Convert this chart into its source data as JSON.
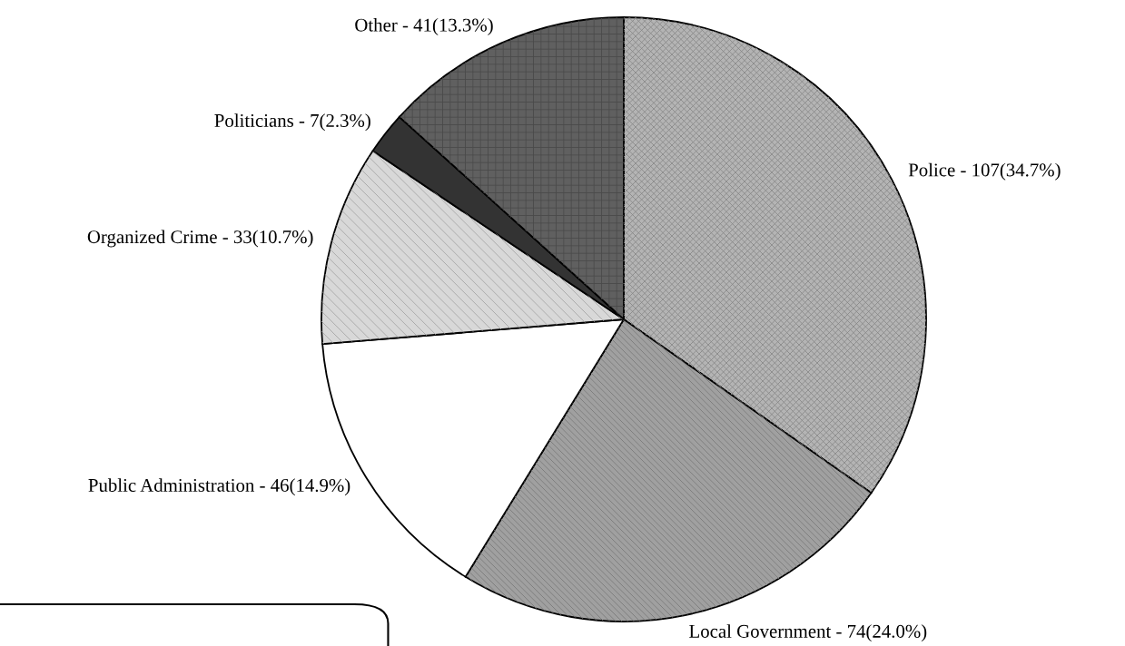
{
  "chart_data": {
    "type": "pie",
    "categories": [
      "Police",
      "Local Government",
      "Public Administration",
      "Organized Crime",
      "Politicians",
      "Other"
    ],
    "values": [
      107,
      74,
      46,
      33,
      7,
      41
    ],
    "value_labels": [
      "107(34.7%)",
      "74(24.0%)",
      "46(14.9%)",
      "33(10.7%)",
      "7(2.3%)",
      "41(13.3%)"
    ],
    "colors": [
      "#b4b4b4",
      "#a0a0a0",
      "#ffffff",
      "#d8d8d8",
      "#333333",
      "#606060"
    ],
    "legend": false
  }
}
